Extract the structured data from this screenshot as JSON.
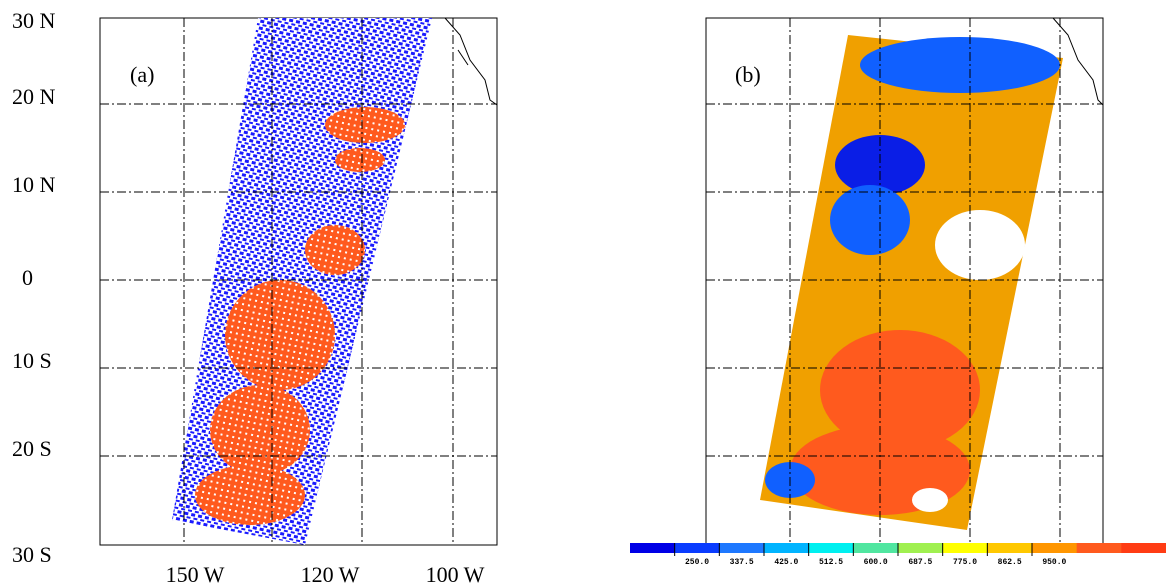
{
  "panels": [
    {
      "label": "(a)"
    },
    {
      "label": "(b)"
    }
  ],
  "latitude_labels": [
    "30 N",
    "20 N",
    "10 N",
    "0",
    "10 S",
    "20 S",
    "30 S"
  ],
  "longitude_labels": [
    "150 W",
    "120 W",
    "100 W"
  ],
  "colorbar": {
    "labels": [
      "250.0",
      "337.5",
      "425.0",
      "512.5",
      "600.0",
      "687.5",
      "775.0",
      "862.5",
      "950.0"
    ]
  }
}
